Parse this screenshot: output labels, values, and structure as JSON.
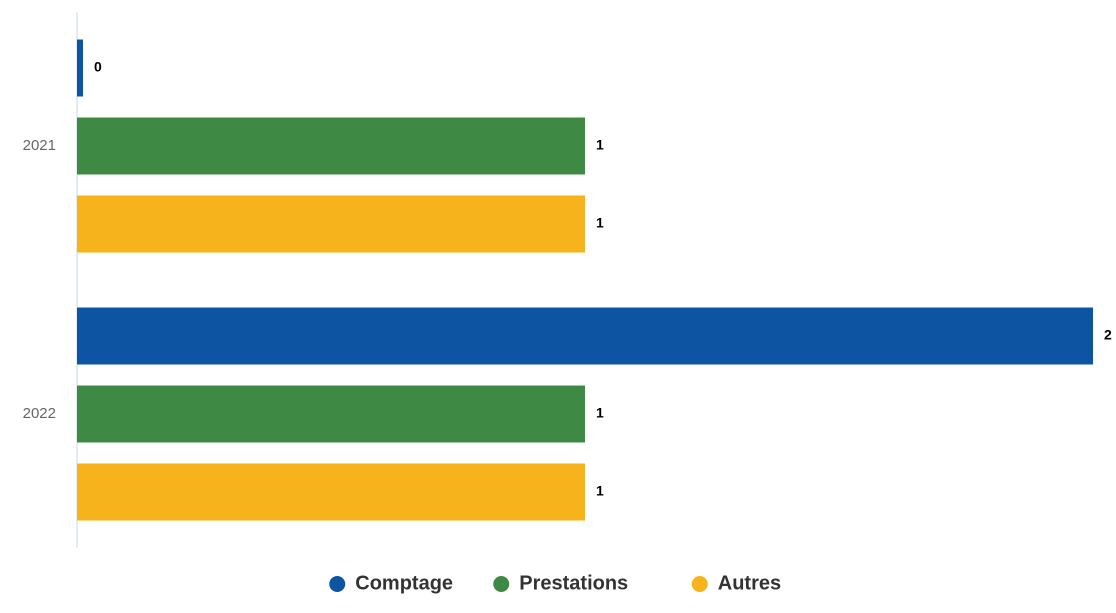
{
  "chart_data": {
    "type": "bar",
    "orientation": "horizontal",
    "categories": [
      "2021",
      "2022"
    ],
    "series": [
      {
        "name": "Comptage",
        "color": "#0d55a3",
        "values": [
          0,
          2
        ]
      },
      {
        "name": "Prestations",
        "color": "#3e8a45",
        "values": [
          1,
          1
        ]
      },
      {
        "name": "Autres",
        "color": "#f6b31b",
        "values": [
          1,
          1
        ]
      }
    ],
    "xlim": [
      0,
      2
    ],
    "data_labels": true,
    "grid": false,
    "legend_position": "bottom"
  }
}
